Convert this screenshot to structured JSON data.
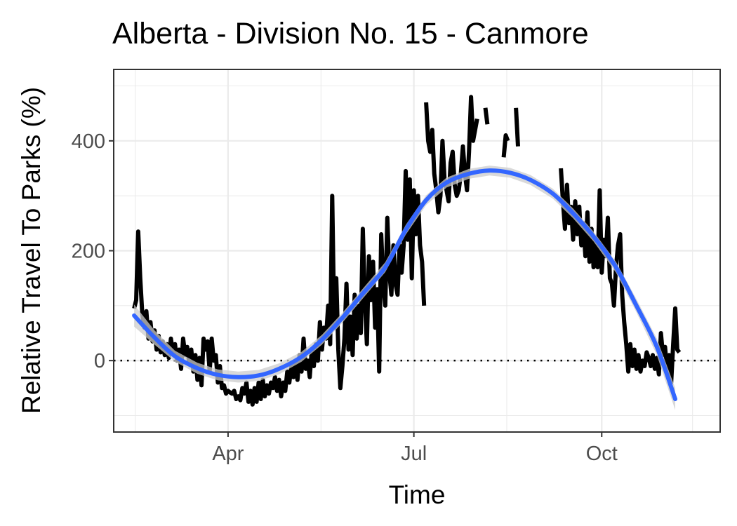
{
  "chart_data": {
    "type": "line",
    "title": "Alberta - Division No. 15 - Canmore",
    "xlabel": "Time",
    "ylabel": "Relative Travel To Parks (%)",
    "x_ticks": [
      "Apr",
      "Jul",
      "Oct"
    ],
    "y_ticks": [
      "0",
      "200",
      "400"
    ],
    "x_tick_dates": [
      "2020-04-01",
      "2020-07-01",
      "2020-10-01"
    ],
    "xlim": [
      "2020-02-05",
      "2020-11-28"
    ],
    "ylim": [
      -130,
      530
    ],
    "grid": true,
    "reference_line": {
      "y": 0,
      "style": "dotted"
    },
    "colors": {
      "series": "#000000",
      "trend": "#3366ff",
      "confidence_band": "#cccccc",
      "grid": "#ebebeb",
      "panel_border": "#333333"
    },
    "series": [
      {
        "style": "line",
        "points": [
          [
            "2020-02-15",
            95
          ],
          [
            "2020-02-16",
            110
          ],
          [
            "2020-02-17",
            235
          ],
          [
            "2020-02-18",
            150
          ],
          [
            "2020-02-19",
            85
          ],
          [
            "2020-02-20",
            60
          ],
          [
            "2020-02-21",
            90
          ],
          [
            "2020-02-22",
            40
          ],
          [
            "2020-02-23",
            70
          ],
          [
            "2020-02-24",
            35
          ],
          [
            "2020-02-25",
            55
          ],
          [
            "2020-02-26",
            20
          ],
          [
            "2020-02-27",
            45
          ],
          [
            "2020-02-28",
            15
          ],
          [
            "2020-02-29",
            35
          ],
          [
            "2020-03-01",
            10
          ],
          [
            "2020-03-02",
            30
          ],
          [
            "2020-03-03",
            5
          ],
          [
            "2020-03-04",
            40
          ],
          [
            "2020-03-05",
            15
          ],
          [
            "2020-03-06",
            30
          ],
          [
            "2020-03-07",
            0
          ],
          [
            "2020-03-08",
            20
          ],
          [
            "2020-03-09",
            -15
          ],
          [
            "2020-03-10",
            40
          ],
          [
            "2020-03-11",
            10
          ],
          [
            "2020-03-12",
            25
          ],
          [
            "2020-03-13",
            -5
          ],
          [
            "2020-03-14",
            20
          ],
          [
            "2020-03-15",
            -20
          ],
          [
            "2020-03-16",
            10
          ],
          [
            "2020-03-17",
            -35
          ],
          [
            "2020-03-18",
            5
          ],
          [
            "2020-03-19",
            -45
          ],
          [
            "2020-03-20",
            40
          ],
          [
            "2020-03-21",
            20
          ],
          [
            "2020-03-22",
            35
          ],
          [
            "2020-03-23",
            -20
          ],
          [
            "2020-03-24",
            40
          ],
          [
            "2020-03-25",
            0
          ],
          [
            "2020-03-26",
            10
          ],
          [
            "2020-03-27",
            -40
          ],
          [
            "2020-03-28",
            -10
          ],
          [
            "2020-03-29",
            -50
          ],
          [
            "2020-03-30",
            -45
          ],
          [
            "2020-03-31",
            -60
          ],
          [
            "2020-04-01",
            -55
          ],
          [
            "2020-04-02",
            -58
          ],
          [
            "2020-04-03",
            -60
          ],
          [
            "2020-04-04",
            -55
          ],
          [
            "2020-04-05",
            -70
          ],
          [
            "2020-04-06",
            -65
          ],
          [
            "2020-04-07",
            -72
          ],
          [
            "2020-04-08",
            -50
          ],
          [
            "2020-04-09",
            -60
          ],
          [
            "2020-04-10",
            -40
          ],
          [
            "2020-04-11",
            -75
          ],
          [
            "2020-04-12",
            -55
          ],
          [
            "2020-04-13",
            -80
          ],
          [
            "2020-04-14",
            -50
          ],
          [
            "2020-04-15",
            -75
          ],
          [
            "2020-04-16",
            -40
          ],
          [
            "2020-04-17",
            -70
          ],
          [
            "2020-04-18",
            -35
          ],
          [
            "2020-04-19",
            -65
          ],
          [
            "2020-04-20",
            -45
          ],
          [
            "2020-04-21",
            -60
          ],
          [
            "2020-04-22",
            -40
          ],
          [
            "2020-04-23",
            -50
          ],
          [
            "2020-04-24",
            -30
          ],
          [
            "2020-04-25",
            -55
          ],
          [
            "2020-04-26",
            -35
          ],
          [
            "2020-04-27",
            -65
          ],
          [
            "2020-04-28",
            -40
          ],
          [
            "2020-04-29",
            -55
          ],
          [
            "2020-04-30",
            -20
          ],
          [
            "2020-05-01",
            -40
          ],
          [
            "2020-05-02",
            -10
          ],
          [
            "2020-05-03",
            -30
          ],
          [
            "2020-05-04",
            -5
          ],
          [
            "2020-05-05",
            -35
          ],
          [
            "2020-05-06",
            10
          ],
          [
            "2020-05-07",
            -20
          ],
          [
            "2020-05-08",
            40
          ],
          [
            "2020-05-09",
            -15
          ],
          [
            "2020-05-10",
            0
          ],
          [
            "2020-05-11",
            -30
          ],
          [
            "2020-05-12",
            20
          ],
          [
            "2020-05-13",
            -10
          ],
          [
            "2020-05-14",
            30
          ],
          [
            "2020-05-15",
            0
          ],
          [
            "2020-05-16",
            70
          ],
          [
            "2020-05-17",
            20
          ],
          [
            "2020-05-18",
            60
          ],
          [
            "2020-05-19",
            40
          ],
          [
            "2020-05-20",
            100
          ],
          [
            "2020-05-21",
            30
          ],
          [
            "2020-05-22",
            300
          ],
          [
            "2020-05-23",
            60
          ],
          [
            "2020-05-24",
            150
          ],
          [
            "2020-05-25",
            20
          ],
          [
            "2020-05-26",
            -50
          ],
          [
            "2020-05-27",
            -10
          ],
          [
            "2020-05-28",
            40
          ],
          [
            "2020-05-29",
            140
          ],
          [
            "2020-05-30",
            20
          ],
          [
            "2020-05-31",
            80
          ],
          [
            "2020-06-01",
            10
          ],
          [
            "2020-06-02",
            120
          ],
          [
            "2020-06-03",
            40
          ],
          [
            "2020-06-04",
            100
          ],
          [
            "2020-06-05",
            50
          ],
          [
            "2020-06-06",
            240
          ],
          [
            "2020-06-07",
            110
          ],
          [
            "2020-06-08",
            30
          ],
          [
            "2020-06-09",
            190
          ],
          [
            "2020-06-10",
            110
          ],
          [
            "2020-06-11",
            180
          ],
          [
            "2020-06-12",
            60
          ],
          [
            "2020-06-13",
            130
          ],
          [
            "2020-06-14",
            -20
          ],
          [
            "2020-06-15",
            230
          ],
          [
            "2020-06-16",
            140
          ],
          [
            "2020-06-17",
            100
          ],
          [
            "2020-06-18",
            260
          ],
          [
            "2020-06-19",
            160
          ],
          [
            "2020-06-20",
            120
          ],
          [
            "2020-06-21",
            210
          ],
          [
            "2020-06-22",
            140
          ],
          [
            "2020-06-23",
            120
          ],
          [
            "2020-06-24",
            210
          ],
          [
            "2020-06-25",
            160
          ],
          [
            "2020-06-26",
            210
          ],
          [
            "2020-06-27",
            345
          ],
          [
            "2020-06-28",
            220
          ],
          [
            "2020-06-29",
            330
          ],
          [
            "2020-06-30",
            150
          ],
          [
            "2020-07-01",
            310
          ],
          [
            "2020-07-02",
            230
          ],
          [
            "2020-07-03",
            300
          ],
          [
            "2020-07-04",
            210
          ],
          [
            "2020-07-05",
            180
          ],
          [
            "2020-07-06",
            100
          ]
        ]
      },
      {
        "style": "line",
        "points": [
          [
            "2020-07-07",
            470
          ],
          [
            "2020-07-08",
            400
          ],
          [
            "2020-07-09",
            380
          ],
          [
            "2020-07-10",
            420
          ],
          [
            "2020-07-11",
            340
          ],
          [
            "2020-07-12",
            310
          ],
          [
            "2020-07-13",
            270
          ],
          [
            "2020-07-14",
            300
          ],
          [
            "2020-07-15",
            400
          ],
          [
            "2020-07-16",
            330
          ],
          [
            "2020-07-17",
            310
          ],
          [
            "2020-07-18",
            290
          ],
          [
            "2020-07-19",
            360
          ],
          [
            "2020-07-20",
            380
          ],
          [
            "2020-07-21",
            320
          ],
          [
            "2020-07-22",
            300
          ],
          [
            "2020-07-23",
            310
          ],
          [
            "2020-07-24",
            340
          ],
          [
            "2020-07-25",
            390
          ],
          [
            "2020-07-26",
            340
          ],
          [
            "2020-07-27",
            310
          ],
          [
            "2020-07-28",
            380
          ],
          [
            "2020-07-29",
            480
          ],
          [
            "2020-07-30",
            400
          ],
          [
            "2020-07-31",
            420
          ],
          [
            "2020-08-01",
            440
          ]
        ]
      },
      {
        "style": "line",
        "points": [
          [
            "2020-08-05",
            460
          ],
          [
            "2020-08-06",
            430
          ]
        ]
      },
      {
        "style": "line",
        "points": [
          [
            "2020-08-14",
            370
          ],
          [
            "2020-08-15",
            410
          ],
          [
            "2020-08-16",
            400
          ]
        ]
      },
      {
        "style": "line",
        "points": [
          [
            "2020-08-20",
            460
          ],
          [
            "2020-08-21",
            390
          ]
        ]
      },
      {
        "style": "line",
        "points": [
          [
            "2020-09-11",
            350
          ],
          [
            "2020-09-12",
            290
          ],
          [
            "2020-09-13",
            240
          ],
          [
            "2020-09-14",
            320
          ],
          [
            "2020-09-15",
            250
          ],
          [
            "2020-09-16",
            280
          ],
          [
            "2020-09-17",
            220
          ],
          [
            "2020-09-18",
            290
          ],
          [
            "2020-09-19",
            230
          ],
          [
            "2020-09-20",
            280
          ],
          [
            "2020-09-21",
            210
          ],
          [
            "2020-09-22",
            250
          ],
          [
            "2020-09-23",
            190
          ],
          [
            "2020-09-24",
            270
          ],
          [
            "2020-09-25",
            180
          ],
          [
            "2020-09-26",
            240
          ],
          [
            "2020-09-27",
            170
          ],
          [
            "2020-09-28",
            220
          ],
          [
            "2020-09-29",
            170
          ],
          [
            "2020-09-30",
            310
          ],
          [
            "2020-10-01",
            160
          ],
          [
            "2020-10-02",
            220
          ],
          [
            "2020-10-03",
            190
          ],
          [
            "2020-10-04",
            260
          ],
          [
            "2020-10-05",
            150
          ],
          [
            "2020-10-06",
            140
          ],
          [
            "2020-10-07",
            100
          ],
          [
            "2020-10-08",
            170
          ],
          [
            "2020-10-09",
            210
          ],
          [
            "2020-10-10",
            230
          ],
          [
            "2020-10-11",
            120
          ],
          [
            "2020-10-12",
            70
          ],
          [
            "2020-10-13",
            30
          ],
          [
            "2020-10-14",
            -20
          ],
          [
            "2020-10-15",
            30
          ],
          [
            "2020-10-16",
            -10
          ],
          [
            "2020-10-17",
            20
          ],
          [
            "2020-10-18",
            -15
          ],
          [
            "2020-10-19",
            10
          ],
          [
            "2020-10-20",
            -20
          ],
          [
            "2020-10-21",
            0
          ],
          [
            "2020-10-22",
            -10
          ],
          [
            "2020-10-23",
            15
          ],
          [
            "2020-10-24",
            5
          ],
          [
            "2020-10-25",
            -10
          ],
          [
            "2020-10-26",
            10
          ],
          [
            "2020-10-27",
            -15
          ],
          [
            "2020-10-28",
            5
          ],
          [
            "2020-10-29",
            -25
          ],
          [
            "2020-10-30",
            50
          ],
          [
            "2020-10-31",
            10
          ],
          [
            "2020-11-01",
            25
          ],
          [
            "2020-11-02",
            -20
          ],
          [
            "2020-11-03",
            10
          ],
          [
            "2020-11-04",
            -40
          ],
          [
            "2020-11-05",
            30
          ],
          [
            "2020-11-06",
            95
          ],
          [
            "2020-11-07",
            20
          ],
          [
            "2020-11-08",
            15
          ]
        ]
      }
    ],
    "trend": {
      "name": "smoothed fit",
      "points": [
        [
          "2020-02-15",
          82
        ],
        [
          "2020-02-25",
          42
        ],
        [
          "2020-03-06",
          8
        ],
        [
          "2020-03-17",
          -14
        ],
        [
          "2020-03-27",
          -26
        ],
        [
          "2020-04-06",
          -30
        ],
        [
          "2020-04-16",
          -27
        ],
        [
          "2020-04-26",
          -15
        ],
        [
          "2020-05-07",
          7
        ],
        [
          "2020-05-17",
          38
        ],
        [
          "2020-05-27",
          78
        ],
        [
          "2020-06-06",
          122
        ],
        [
          "2020-06-17",
          170
        ],
        [
          "2020-06-27",
          238
        ],
        [
          "2020-07-07",
          292
        ],
        [
          "2020-07-17",
          324
        ],
        [
          "2020-07-28",
          340
        ],
        [
          "2020-08-07",
          346
        ],
        [
          "2020-08-17",
          342
        ],
        [
          "2020-08-27",
          329
        ],
        [
          "2020-09-07",
          304
        ],
        [
          "2020-09-17",
          268
        ],
        [
          "2020-09-27",
          226
        ],
        [
          "2020-10-08",
          170
        ],
        [
          "2020-10-18",
          100
        ],
        [
          "2020-10-28",
          25
        ],
        [
          "2020-11-06",
          -70
        ]
      ],
      "band_halfwidth": [
        20,
        13,
        10,
        10,
        10,
        10,
        10,
        10,
        9,
        9,
        9,
        9,
        9,
        9,
        9,
        9,
        9,
        9,
        9,
        9,
        9,
        9,
        9,
        10,
        12,
        15,
        20
      ]
    }
  }
}
